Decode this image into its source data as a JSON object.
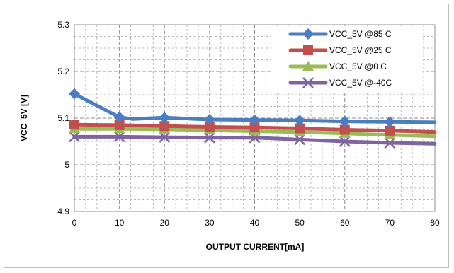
{
  "chart_data": {
    "type": "line",
    "title": "",
    "xlabel": "OUTPUT CURRENT[mA]",
    "ylabel": "VCC_5V [V]",
    "xlim": [
      0,
      80
    ],
    "ylim": [
      4.9,
      5.3
    ],
    "xticks": [
      "0",
      "10",
      "20",
      "30",
      "40",
      "50",
      "60",
      "70",
      "80"
    ],
    "yticks": [
      "4.9",
      "5",
      "5.1",
      "5.2",
      "5.3"
    ],
    "grid": "dashed-major-and-minor",
    "legend_position": "top-right",
    "series": [
      {
        "name": "VCC_5V @85 C",
        "color": "#4a7ec1",
        "marker": "diamond",
        "points": [
          [
            0,
            5.152
          ],
          [
            10,
            5.102
          ],
          [
            13,
            5.098
          ],
          [
            20,
            5.101
          ],
          [
            30,
            5.097
          ],
          [
            40,
            5.096
          ],
          [
            50,
            5.095
          ],
          [
            60,
            5.093
          ],
          [
            70,
            5.092
          ],
          [
            80,
            5.091
          ]
        ],
        "marker_x": [
          0,
          10,
          20,
          30,
          40,
          50,
          60,
          70
        ]
      },
      {
        "name": "VCC_5V  @25 C",
        "color": "#c0504d",
        "marker": "square",
        "points": [
          [
            0,
            5.086
          ],
          [
            10,
            5.085
          ],
          [
            20,
            5.083
          ],
          [
            30,
            5.081
          ],
          [
            40,
            5.08
          ],
          [
            50,
            5.078
          ],
          [
            60,
            5.075
          ],
          [
            70,
            5.073
          ],
          [
            80,
            5.07
          ]
        ],
        "marker_x": [
          0,
          10,
          20,
          30,
          40,
          50,
          60,
          70
        ]
      },
      {
        "name": "VCC_5V  @0 C",
        "color": "#9bbb59",
        "marker": "triangle",
        "points": [
          [
            0,
            5.077
          ],
          [
            10,
            5.077
          ],
          [
            20,
            5.076
          ],
          [
            30,
            5.074
          ],
          [
            40,
            5.072
          ],
          [
            50,
            5.07
          ],
          [
            60,
            5.067
          ],
          [
            70,
            5.064
          ],
          [
            80,
            5.061
          ]
        ],
        "marker_x": [
          0,
          10,
          20,
          30,
          40,
          50,
          60,
          70
        ]
      },
      {
        "name": "VCC_5V  @-40C",
        "color": "#8064a2",
        "marker": "x",
        "points": [
          [
            0,
            5.06
          ],
          [
            10,
            5.06
          ],
          [
            20,
            5.059
          ],
          [
            30,
            5.058
          ],
          [
            40,
            5.058
          ],
          [
            50,
            5.054
          ],
          [
            60,
            5.05
          ],
          [
            70,
            5.047
          ],
          [
            80,
            5.045
          ]
        ],
        "marker_x": [
          0,
          10,
          20,
          30,
          40,
          50,
          60,
          70
        ]
      }
    ]
  }
}
